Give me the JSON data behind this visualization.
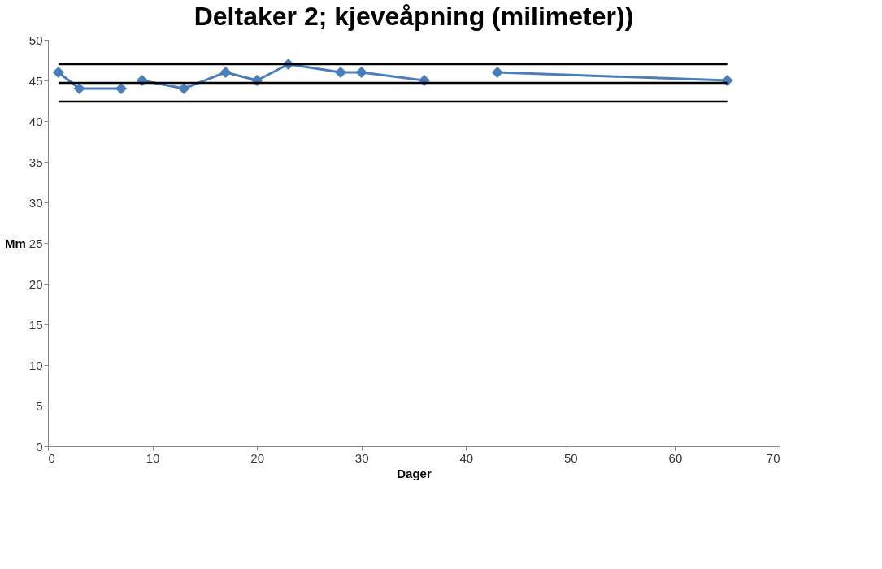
{
  "chart_data": {
    "type": "line",
    "title": "Deltaker 2; kjeveåpning (milimeter))",
    "xlabel": "Dager",
    "ylabel": "Mm",
    "xlim": [
      0,
      70
    ],
    "xticks": [
      0,
      10,
      20,
      30,
      40,
      50,
      60,
      70
    ],
    "ylim": [
      0,
      50
    ],
    "yticks": [
      0,
      5,
      10,
      15,
      20,
      25,
      30,
      35,
      40,
      45,
      50
    ],
    "grid": false,
    "marker": "diamond",
    "line_style": "solid",
    "series": [
      {
        "color": "#4a7ebb",
        "x": [
          1,
          3,
          7
        ],
        "values": [
          46,
          44,
          44
        ]
      },
      {
        "color": "#4a7ebb",
        "x": [
          9,
          13,
          17,
          20,
          23,
          28,
          30,
          36
        ],
        "values": [
          45,
          44,
          46,
          45,
          47,
          46,
          46,
          45
        ]
      },
      {
        "color": "#4a7ebb",
        "x": [
          43,
          65
        ],
        "values": [
          46,
          45
        ]
      },
      {
        "color": "#000000",
        "marker": "none",
        "x": [
          1,
          65
        ],
        "values": [
          47,
          47
        ]
      },
      {
        "color": "#000000",
        "marker": "none",
        "x": [
          1,
          65
        ],
        "values": [
          44.7,
          44.7
        ]
      },
      {
        "color": "#000000",
        "marker": "none",
        "x": [
          1,
          65
        ],
        "values": [
          42.4,
          42.4
        ]
      }
    ]
  }
}
